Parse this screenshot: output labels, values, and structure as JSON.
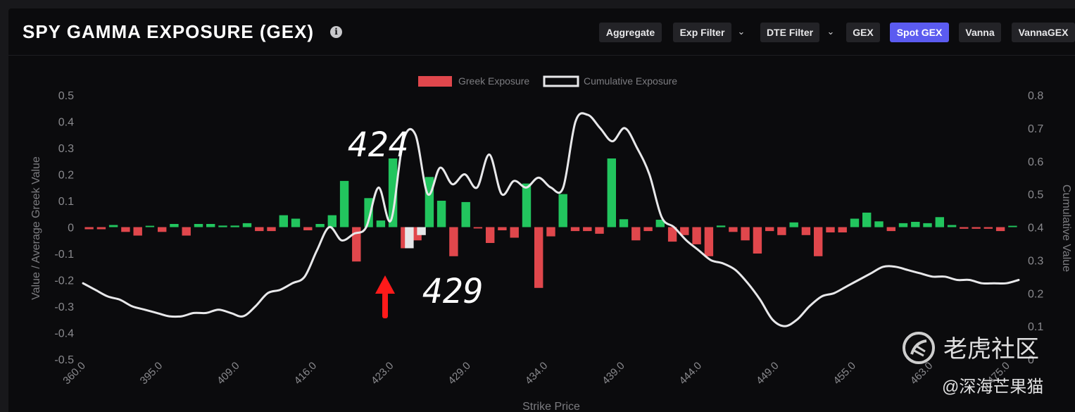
{
  "header": {
    "title": "SPY GAMMA EXPOSURE (GEX)",
    "info_icon": "info-circle-icon",
    "buttons": {
      "aggregate": "Aggregate",
      "exp_filter": "Exp Filter",
      "dte_filter": "DTE Filter",
      "gex": "GEX",
      "spot_gex": "Spot GEX",
      "vanna": "Vanna",
      "vannagex": "VannaGEX"
    },
    "active_button": "Spot GEX",
    "accent_color": "#5b5bf0"
  },
  "annotations": {
    "label_424": "424",
    "label_429": "429",
    "arrow": "red-up-arrow-icon",
    "arrow_color": "#ff1a1a"
  },
  "watermark": {
    "brand": "老虎社区",
    "user": "@深海芒果猫",
    "logo": "tiger-logo-icon"
  },
  "chart_data": {
    "type": "bar",
    "legend": {
      "greek": "Greek Exposure",
      "cumulative": "Cumulative Exposure",
      "placement": "top-center"
    },
    "xlabel": "Strike Price",
    "ylabel_left": "Value / Average Greek Value",
    "ylabel_right": "Cumulative Value",
    "ylim_left": [
      -0.5,
      0.5
    ],
    "yticks_left": [
      "0.5",
      "0.4",
      "0.3",
      "0.2",
      "0.1",
      "0",
      "-0.1",
      "-0.2",
      "-0.3",
      "-0.4",
      "-0.5"
    ],
    "ylim_right": [
      0,
      0.8
    ],
    "yticks_right": [
      "0.8",
      "0.7",
      "0.6",
      "0.5",
      "0.4",
      "0.3",
      "0.2",
      "0.1",
      "0"
    ],
    "x_tick_labels": [
      "360.0",
      "395.0",
      "409.0",
      "416.0",
      "423.0",
      "429.0",
      "434.0",
      "439.0",
      "444.0",
      "449.0",
      "455.0",
      "463.0",
      "475.0"
    ],
    "colors": {
      "positive": "#22c55e",
      "negative": "#e0474c",
      "spot": "#e6e6e8",
      "cumulative": "#e8e8ea"
    },
    "bars": [
      -0.008,
      -0.008,
      0.008,
      -0.018,
      -0.032,
      0.005,
      -0.018,
      0.012,
      -0.032,
      0.012,
      0.012,
      0.006,
      0.006,
      0.015,
      -0.015,
      -0.015,
      0.045,
      0.032,
      -0.012,
      0.012,
      0.045,
      0.175,
      -0.13,
      0.11,
      0.025,
      0.26,
      -0.08,
      -0.05,
      0.19,
      0.1,
      -0.11,
      0.095,
      -0.005,
      -0.06,
      -0.012,
      -0.04,
      0.165,
      -0.23,
      -0.035,
      0.125,
      -0.015,
      -0.015,
      -0.025,
      0.26,
      0.03,
      -0.05,
      -0.015,
      0.028,
      -0.055,
      -0.03,
      -0.065,
      -0.11,
      0.006,
      -0.018,
      -0.05,
      -0.1,
      -0.015,
      -0.03,
      0.018,
      -0.03,
      -0.11,
      -0.02,
      -0.02,
      0.032,
      0.055,
      0.022,
      -0.015,
      0.015,
      0.02,
      0.015,
      0.038,
      0.008,
      -0.006,
      -0.006,
      -0.006,
      -0.015,
      0.005
    ],
    "spot_bars": [
      -0.08,
      -0.03
    ],
    "cumulative": [
      0.23,
      0.21,
      0.19,
      0.18,
      0.16,
      0.15,
      0.14,
      0.13,
      0.13,
      0.14,
      0.14,
      0.15,
      0.14,
      0.13,
      0.16,
      0.2,
      0.21,
      0.23,
      0.25,
      0.33,
      0.4,
      0.36,
      0.38,
      0.4,
      0.52,
      0.42,
      0.66,
      0.68,
      0.5,
      0.58,
      0.53,
      0.56,
      0.52,
      0.62,
      0.5,
      0.54,
      0.52,
      0.55,
      0.52,
      0.52,
      0.72,
      0.74,
      0.7,
      0.66,
      0.7,
      0.64,
      0.56,
      0.43,
      0.4,
      0.36,
      0.33,
      0.3,
      0.29,
      0.27,
      0.23,
      0.18,
      0.12,
      0.1,
      0.12,
      0.16,
      0.19,
      0.2,
      0.22,
      0.24,
      0.26,
      0.28,
      0.28,
      0.27,
      0.26,
      0.25,
      0.25,
      0.24,
      0.24,
      0.23,
      0.23,
      0.23,
      0.24
    ]
  }
}
